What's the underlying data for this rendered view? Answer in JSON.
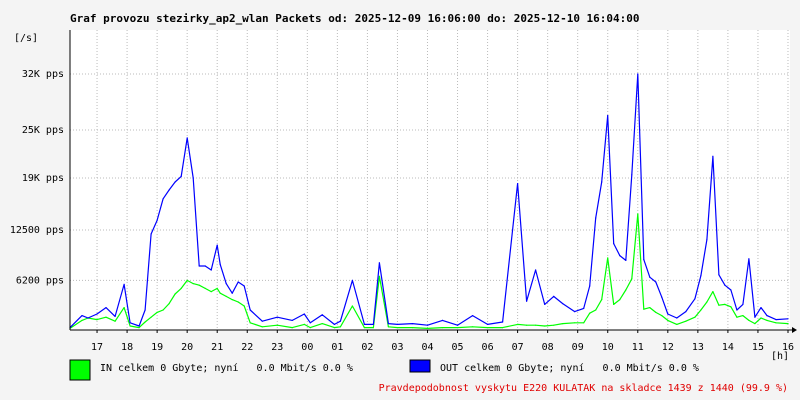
{
  "chart_data": {
    "type": "line",
    "title": "Graf provozu stezirky_ap2_wlan Packets od: 2025-12-09 16:06:00 do: 2025-12-10 16:04:00",
    "ylabel": "[/s]",
    "xlabel": "[h]",
    "x_range": [
      16.1,
      40.067
    ],
    "ylim": [
      0,
      37500
    ],
    "y_ticks": [
      {
        "value": 6200,
        "label": "6200 pps"
      },
      {
        "value": 12500,
        "label": "12500 pps"
      },
      {
        "value": 19000,
        "label": "19K pps"
      },
      {
        "value": 25000,
        "label": "25K pps"
      },
      {
        "value": 32000,
        "label": "32K pps"
      }
    ],
    "x_ticks": [
      {
        "value": 17,
        "label": "17"
      },
      {
        "value": 18,
        "label": "18"
      },
      {
        "value": 19,
        "label": "19"
      },
      {
        "value": 20,
        "label": "20"
      },
      {
        "value": 21,
        "label": "21"
      },
      {
        "value": 22,
        "label": "22"
      },
      {
        "value": 23,
        "label": "23"
      },
      {
        "value": 24,
        "label": "00"
      },
      {
        "value": 25,
        "label": "01"
      },
      {
        "value": 26,
        "label": "02"
      },
      {
        "value": 27,
        "label": "03"
      },
      {
        "value": 28,
        "label": "04"
      },
      {
        "value": 29,
        "label": "05"
      },
      {
        "value": 30,
        "label": "06"
      },
      {
        "value": 31,
        "label": "07"
      },
      {
        "value": 32,
        "label": "08"
      },
      {
        "value": 33,
        "label": "09"
      },
      {
        "value": 34,
        "label": "10"
      },
      {
        "value": 35,
        "label": "11"
      },
      {
        "value": 36,
        "label": "12"
      },
      {
        "value": 37,
        "label": "13"
      },
      {
        "value": 38,
        "label": "14"
      },
      {
        "value": 39,
        "label": "15"
      },
      {
        "value": 40,
        "label": "16"
      }
    ],
    "grid": true,
    "series": [
      {
        "name": "IN",
        "color": "#00ff00",
        "x": [
          16.1,
          16.5,
          16.7,
          17.0,
          17.3,
          17.6,
          17.9,
          18.1,
          18.4,
          18.6,
          18.8,
          19.0,
          19.2,
          19.4,
          19.6,
          19.8,
          20.0,
          20.2,
          20.4,
          20.6,
          20.8,
          21.0,
          21.1,
          21.3,
          21.5,
          21.7,
          21.9,
          22.1,
          22.5,
          23.0,
          23.5,
          23.9,
          24.1,
          24.5,
          24.9,
          25.1,
          25.5,
          25.9,
          26.2,
          26.4,
          26.7,
          27.0,
          27.5,
          28.0,
          28.5,
          29.0,
          29.5,
          30.0,
          30.5,
          31.0,
          31.3,
          31.6,
          31.9,
          32.2,
          32.5,
          32.9,
          33.2,
          33.4,
          33.6,
          33.8,
          34.0,
          34.2,
          34.4,
          34.6,
          34.8,
          35.0,
          35.2,
          35.4,
          35.6,
          35.8,
          36.0,
          36.3,
          36.6,
          36.9,
          37.1,
          37.3,
          37.5,
          37.7,
          37.9,
          38.1,
          38.3,
          38.5,
          38.7,
          38.9,
          39.1,
          39.3,
          39.6,
          40.0
        ],
        "values": [
          200,
          1200,
          1500,
          1300,
          1600,
          1100,
          2800,
          500,
          300,
          1000,
          1600,
          2200,
          2500,
          3300,
          4500,
          5200,
          6200,
          5800,
          5600,
          5200,
          4800,
          5200,
          4600,
          4200,
          3800,
          3500,
          3000,
          900,
          400,
          600,
          300,
          700,
          300,
          800,
          300,
          400,
          3000,
          300,
          300,
          6700,
          400,
          300,
          300,
          200,
          300,
          300,
          400,
          300,
          300,
          700,
          600,
          600,
          500,
          600,
          800,
          900,
          900,
          2100,
          2500,
          3800,
          9000,
          3200,
          3800,
          5000,
          6400,
          14500,
          2600,
          2800,
          2200,
          1800,
          1200,
          700,
          1100,
          1600,
          2500,
          3500,
          4800,
          3100,
          3200,
          2900,
          1600,
          1800,
          1200,
          800,
          1500,
          1200,
          900,
          800
        ]
      },
      {
        "name": "OUT",
        "color": "#0000ff",
        "x": [
          16.1,
          16.5,
          16.7,
          17.0,
          17.3,
          17.6,
          17.9,
          18.1,
          18.4,
          18.6,
          18.8,
          19.0,
          19.2,
          19.4,
          19.6,
          19.8,
          20.0,
          20.2,
          20.4,
          20.6,
          20.8,
          21.0,
          21.1,
          21.3,
          21.5,
          21.7,
          21.9,
          22.1,
          22.5,
          23.0,
          23.5,
          23.9,
          24.1,
          24.5,
          24.9,
          25.1,
          25.5,
          25.9,
          26.2,
          26.4,
          26.7,
          27.0,
          27.5,
          28.0,
          28.5,
          29.0,
          29.5,
          30.0,
          30.5,
          31.0,
          31.3,
          31.6,
          31.9,
          32.2,
          32.5,
          32.9,
          33.2,
          33.4,
          33.6,
          33.8,
          34.0,
          34.2,
          34.4,
          34.6,
          34.8,
          35.0,
          35.2,
          35.4,
          35.6,
          35.8,
          36.0,
          36.3,
          36.6,
          36.9,
          37.1,
          37.3,
          37.5,
          37.7,
          37.9,
          38.1,
          38.3,
          38.5,
          38.7,
          38.9,
          39.1,
          39.3,
          39.6,
          40.0
        ],
        "values": [
          300,
          1800,
          1500,
          2000,
          2800,
          1700,
          5700,
          900,
          500,
          2500,
          12000,
          13700,
          16400,
          17500,
          18500,
          19200,
          24000,
          19000,
          8000,
          8000,
          7500,
          10600,
          8200,
          5800,
          4600,
          6000,
          5500,
          2500,
          1100,
          1600,
          1200,
          2000,
          900,
          1900,
          700,
          1100,
          6200,
          700,
          700,
          8400,
          800,
          700,
          800,
          600,
          1200,
          600,
          1800,
          700,
          1000,
          18300,
          3600,
          7500,
          3200,
          4200,
          3300,
          2300,
          2700,
          5500,
          14000,
          18500,
          26800,
          10800,
          9300,
          8700,
          19400,
          32000,
          8800,
          6600,
          6000,
          4100,
          2000,
          1500,
          2300,
          3900,
          6800,
          11300,
          21700,
          6900,
          5600,
          5000,
          2500,
          3200,
          8900,
          1600,
          2800,
          1800,
          1300,
          1400
        ]
      }
    ]
  },
  "legend": {
    "in": {
      "text": "IN celkem 0 Gbyte; nyní   0.0 Mbit/s 0.0 %",
      "color": "#00ff00"
    },
    "out": {
      "text": "OUT celkem 0 Gbyte; nyní   0.0 Mbit/s 0.0 %",
      "color": "#0000ff"
    }
  },
  "status": {
    "text": "Pravdepodobnost vyskytu E220 KULATAK na skladce 1439 z 1440 (99.9 %)",
    "color": "#e00000"
  }
}
